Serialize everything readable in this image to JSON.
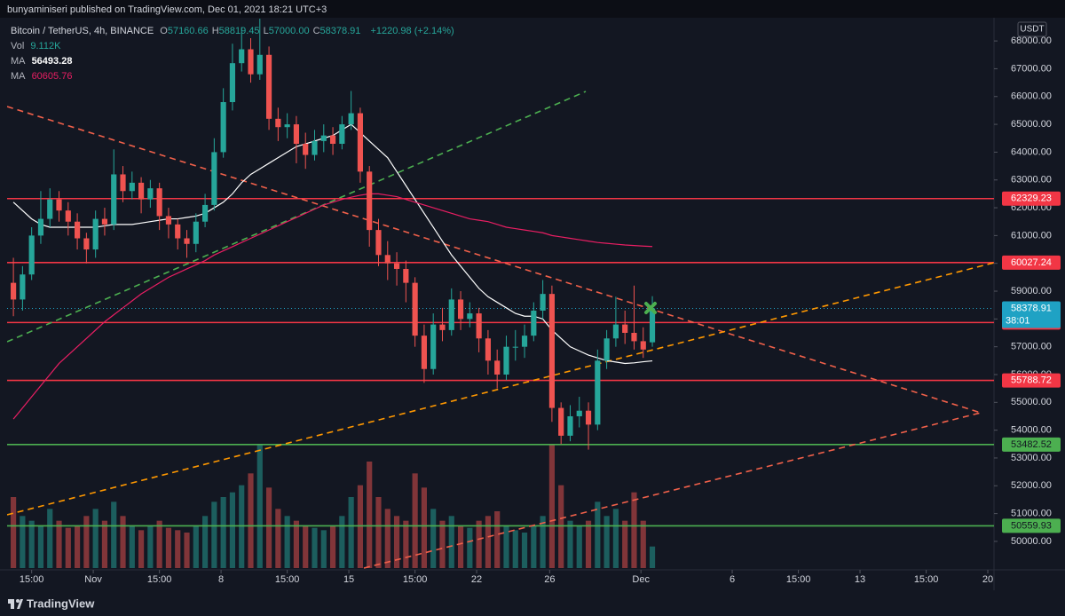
{
  "header": "bunyaminiseri published on TradingView.com, Dec 01, 2021 18:21 UTC+3",
  "footer": "TradingView",
  "chart_data": {
    "type": "candlestick",
    "currency": "USDT",
    "legend": {
      "symbol": "Bitcoin / TetherUS, 4h, BINANCE",
      "ohlc": [
        {
          "label": "O",
          "value": "57160.66"
        },
        {
          "label": "H",
          "value": "58819.45"
        },
        {
          "label": "L",
          "value": "57000.00"
        },
        {
          "label": "C",
          "value": "58378.91"
        }
      ],
      "change": "+1220.98 (+2.14%)",
      "volume": {
        "label": "Vol",
        "value": "9.112K"
      },
      "ma": [
        {
          "label": "MA",
          "value": "56493.28"
        },
        {
          "label": "MA",
          "value": "60605.76"
        }
      ]
    },
    "up_color": "#26a69a",
    "down_color": "#ef5350",
    "x": [
      -4.5,
      -4,
      -3.5,
      -3,
      -2.5,
      -2,
      -1.5,
      -1,
      -0.5,
      0,
      0.5,
      1,
      1.5,
      2,
      2.5,
      3,
      3.5,
      4,
      4.5,
      5,
      5.5,
      6,
      6.5,
      7,
      7.5,
      8,
      8.5,
      9,
      9.5,
      10,
      10.5,
      11,
      11.5,
      12,
      12.5,
      13,
      13.5,
      14,
      14.5,
      15,
      15.5,
      16,
      16.5,
      17,
      17.5,
      18,
      18.5,
      19,
      19.5,
      20,
      20.5,
      21,
      21.5,
      22,
      22.5,
      23,
      23.5,
      24,
      24.5,
      25,
      25.5,
      26,
      26.5,
      27,
      27.5,
      28,
      28.5,
      29,
      29.5,
      30,
      30.5
    ],
    "open": [
      59300,
      58700,
      59600,
      61000,
      61600,
      62300,
      61900,
      61500,
      60900,
      60500,
      61600,
      61400,
      63200,
      62600,
      62900,
      62300,
      62700,
      61700,
      61400,
      60900,
      60700,
      61500,
      62100,
      64000,
      65800,
      67200,
      67700,
      66800,
      67500,
      65200,
      64900,
      65000,
      64300,
      63900,
      64400,
      64600,
      64300,
      65000,
      65400,
      63300,
      61200,
      60300,
      60000,
      59800,
      59300,
      57400,
      56200,
      57800,
      57600,
      58700,
      58000,
      58200,
      57300,
      56500,
      56000,
      57000,
      57000,
      57400,
      58300,
      58900,
      54800,
      53800,
      54500,
      54700,
      54200,
      56500,
      57300,
      57800,
      57500,
      57200,
      57160.66
    ],
    "high": [
      60200,
      59900,
      61300,
      62600,
      62700,
      62600,
      62200,
      61800,
      61100,
      61900,
      62000,
      64100,
      63500,
      63300,
      63100,
      63000,
      62900,
      62000,
      61600,
      61200,
      61800,
      62500,
      64500,
      66300,
      67900,
      68500,
      68100,
      68800,
      67800,
      65600,
      65400,
      65300,
      64700,
      64800,
      65000,
      64900,
      65300,
      66200,
      65600,
      63500,
      61600,
      60800,
      60400,
      60100,
      59500,
      57800,
      58200,
      58400,
      59100,
      59000,
      58600,
      58400,
      57600,
      56900,
      57400,
      57600,
      57800,
      58600,
      59400,
      59200,
      55000,
      54900,
      55200,
      55000,
      56900,
      57600,
      58800,
      58300,
      59200,
      57700,
      58819.45
    ],
    "low": [
      58100,
      58300,
      59400,
      60700,
      61300,
      61500,
      61000,
      60500,
      60000,
      60200,
      61000,
      61200,
      62200,
      62300,
      61800,
      62000,
      61200,
      60900,
      60500,
      60200,
      60400,
      61300,
      61900,
      63800,
      65500,
      66900,
      66500,
      66600,
      64800,
      64400,
      64500,
      63600,
      63400,
      63700,
      64000,
      63900,
      64100,
      64800,
      62900,
      60600,
      59900,
      59400,
      59200,
      58600,
      57000,
      55700,
      56000,
      57200,
      57400,
      57600,
      57700,
      56800,
      56000,
      55500,
      55800,
      56500,
      56600,
      57200,
      58000,
      54300,
      53500,
      53600,
      54100,
      53300,
      54000,
      56200,
      57000,
      57100,
      56900,
      56600,
      57000
    ],
    "close": [
      58700,
      59600,
      61000,
      61600,
      62300,
      61900,
      61500,
      60900,
      60500,
      61600,
      61400,
      63200,
      62600,
      62900,
      62300,
      62700,
      61700,
      61400,
      60900,
      60700,
      61500,
      62100,
      64000,
      65800,
      67200,
      67700,
      66800,
      67500,
      65200,
      64900,
      65000,
      64300,
      63900,
      64400,
      64600,
      64300,
      65000,
      65400,
      63300,
      61200,
      60300,
      60000,
      59800,
      59300,
      57400,
      56200,
      57800,
      57600,
      58700,
      58000,
      58200,
      57300,
      56500,
      56000,
      57000,
      57000,
      57400,
      58300,
      58900,
      54800,
      53800,
      54500,
      54700,
      54200,
      56500,
      57300,
      57800,
      57500,
      57200,
      56900,
      58378.91
    ],
    "volume": [
      30,
      22,
      20,
      18,
      25,
      20,
      17,
      18,
      22,
      25,
      20,
      28,
      22,
      18,
      16,
      18,
      20,
      17,
      16,
      15,
      18,
      22,
      28,
      30,
      32,
      35,
      40,
      52,
      34,
      25,
      22,
      20,
      18,
      17,
      16,
      18,
      22,
      30,
      35,
      45,
      30,
      25,
      22,
      20,
      40,
      34,
      25,
      20,
      22,
      18,
      17,
      20,
      22,
      24,
      18,
      16,
      15,
      18,
      22,
      52,
      35,
      20,
      18,
      20,
      28,
      22,
      25,
      20,
      32,
      20,
      9.112
    ],
    "vlim": [
      0,
      60
    ],
    "series": [
      {
        "name": "MA",
        "color": "#ffffff",
        "values": [
          62200,
          61900,
          61600,
          61400,
          61300,
          61300,
          61300,
          61300,
          61300,
          61300,
          61350,
          61400,
          61400,
          61400,
          61450,
          61500,
          61550,
          61600,
          61600,
          61650,
          61700,
          61800,
          62000,
          62200,
          62500,
          62900,
          63200,
          63400,
          63600,
          63800,
          64000,
          64200,
          64300,
          64400,
          64500,
          64600,
          64800,
          65000,
          64700,
          64400,
          64100,
          63800,
          63300,
          62800,
          62300,
          61800,
          61300,
          60800,
          60300,
          59900,
          59500,
          59100,
          58800,
          58600,
          58400,
          58200,
          58100,
          58100,
          58000,
          57600,
          57300,
          57000,
          56850,
          56700,
          56600,
          56500,
          56450,
          56400,
          56420,
          56460,
          56493.28
        ]
      },
      {
        "name": "MA",
        "color": "#e91e63",
        "values": [
          54400,
          54800,
          55200,
          55600,
          56000,
          56400,
          56700,
          57000,
          57300,
          57600,
          57900,
          58150,
          58400,
          58650,
          58900,
          59100,
          59300,
          59500,
          59650,
          59800,
          59950,
          60100,
          60300,
          60450,
          60600,
          60750,
          60900,
          61050,
          61200,
          61350,
          61500,
          61650,
          61800,
          61950,
          62100,
          62200,
          62300,
          62380,
          62450,
          62500,
          62500,
          62450,
          62400,
          62300,
          62200,
          62100,
          62000,
          61900,
          61800,
          61700,
          61600,
          61550,
          61500,
          61400,
          61300,
          61250,
          61200,
          61150,
          61100,
          61000,
          60950,
          60900,
          60850,
          60800,
          60750,
          60720,
          60690,
          60660,
          60640,
          60620,
          60605.76
        ]
      }
    ],
    "levels": [
      {
        "value": 62329.23,
        "color": "#f23645"
      },
      {
        "value": 60027.24,
        "color": "#f23645"
      },
      {
        "value": 57871.44,
        "color": "#f23645"
      },
      {
        "value": 55788.72,
        "color": "#f23645"
      },
      {
        "value": 53482.52,
        "color": "#4caf50"
      },
      {
        "value": 50559.93,
        "color": "#4caf50"
      }
    ],
    "last_price": {
      "value": 58378.91,
      "countdown": "38:01",
      "color": "#1fa2c4"
    },
    "xlim": [
      -4.72,
      49.34
    ],
    "xticks": [
      {
        "value": -3.375,
        "label": "15:00"
      },
      {
        "value": 0,
        "label": "Nov"
      },
      {
        "value": 3.625,
        "label": "15:00"
      },
      {
        "value": 7,
        "label": "8"
      },
      {
        "value": 10.625,
        "label": "15:00"
      },
      {
        "value": 14,
        "label": "15"
      },
      {
        "value": 17.625,
        "label": "15:00"
      },
      {
        "value": 21,
        "label": "22"
      },
      {
        "value": 25,
        "label": "26"
      },
      {
        "value": 30,
        "label": "Dec"
      },
      {
        "value": 35,
        "label": "6"
      },
      {
        "value": 38.625,
        "label": "15:00"
      },
      {
        "value": 42,
        "label": "13"
      },
      {
        "value": 45.625,
        "label": "15:00"
      },
      {
        "value": 49,
        "label": "20"
      }
    ],
    "ylim": [
      49040,
      68770
    ],
    "yticks": [
      {
        "value": 50000,
        "label": "50000.00"
      },
      {
        "value": 51000,
        "label": "51000.00"
      },
      {
        "value": 52000,
        "label": "52000.00"
      },
      {
        "value": 53000,
        "label": "53000.00"
      },
      {
        "value": 54000,
        "label": "54000.00"
      },
      {
        "value": 55000,
        "label": "55000.00"
      },
      {
        "value": 56000,
        "label": "56000.00"
      },
      {
        "value": 57000,
        "label": "57000.00"
      },
      {
        "value": 58000,
        "label": "58000.00"
      },
      {
        "value": 59000,
        "label": "59000.00"
      },
      {
        "value": 60000,
        "label": "60000.00"
      },
      {
        "value": 61000,
        "label": "61000.00"
      },
      {
        "value": 62000,
        "label": "62000.00"
      },
      {
        "value": 63000,
        "label": "63000.00"
      },
      {
        "value": 64000,
        "label": "64000.00"
      },
      {
        "value": 65000,
        "label": "65000.00"
      },
      {
        "value": 66000,
        "label": "66000.00"
      },
      {
        "value": 67000,
        "label": "67000.00"
      },
      {
        "value": 68000,
        "label": "68000.00"
      }
    ]
  }
}
